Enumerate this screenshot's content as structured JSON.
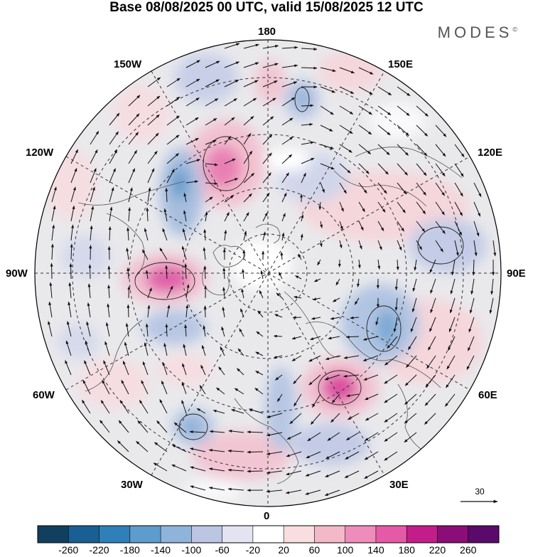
{
  "title": "Base 08/08/2025 00 UTC, valid 15/08/2025 12 UTC",
  "brand": "MODES",
  "brand_mark": "©",
  "longitude_labels": {
    "top": "180",
    "bottom": "0",
    "left": "90W",
    "right": "90E",
    "upper_left_1": "150W",
    "upper_left_2": "120W",
    "upper_right_1": "150E",
    "upper_right_2": "120E",
    "lower_left_1": "60W",
    "lower_left_2": "30W",
    "lower_right_1": "60E",
    "lower_right_2": "30E"
  },
  "reference_vector": {
    "value": "30"
  },
  "colorbar": {
    "ticks": [
      "-260",
      "-220",
      "-180",
      "-140",
      "-100",
      "-60",
      "-20",
      "20",
      "60",
      "100",
      "140",
      "180",
      "220",
      "260"
    ],
    "colors": [
      "#11405f",
      "#195f93",
      "#2f7fb8",
      "#5d9ccc",
      "#8fb4da",
      "#bcc5e2",
      "#e4e3f1",
      "#ffffff",
      "#f8dede",
      "#f3b9c9",
      "#ee8dbb",
      "#e55aa6",
      "#c31d8a",
      "#8b0e78",
      "#5a0a6a"
    ]
  }
}
